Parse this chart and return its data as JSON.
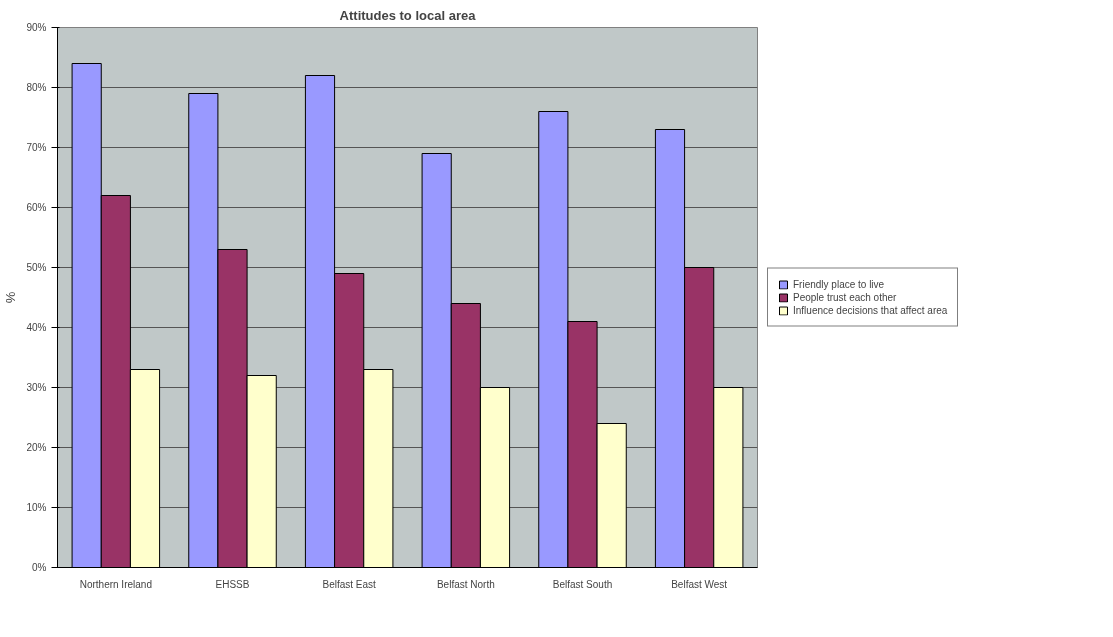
{
  "chart_data": {
    "type": "bar",
    "title": "Attitudes to local area",
    "ylabel": "%",
    "categories": [
      "Northern Ireland",
      "EHSSB",
      "Belfast East",
      "Belfast North",
      "Belfast South",
      "Belfast West"
    ],
    "series": [
      {
        "name": "Friendly place to live",
        "color": "#9999ff",
        "values": [
          84,
          79,
          82,
          69,
          76,
          73
        ]
      },
      {
        "name": "People trust each other",
        "color": "#993366",
        "values": [
          62,
          53,
          49,
          44,
          41,
          50
        ]
      },
      {
        "name": "Influence decisions that affect area",
        "color": "#ffffcc",
        "values": [
          33,
          32,
          33,
          30,
          24,
          30
        ]
      }
    ],
    "ylim": [
      0,
      90
    ],
    "yticks": [
      {
        "value": 0,
        "label": "0%"
      },
      {
        "value": 10,
        "label": "10%"
      },
      {
        "value": 20,
        "label": "20%"
      },
      {
        "value": 30,
        "label": "30%"
      },
      {
        "value": 40,
        "label": "40%"
      },
      {
        "value": 50,
        "label": "50%"
      },
      {
        "value": 60,
        "label": "60%"
      },
      {
        "value": 70,
        "label": "70%"
      },
      {
        "value": 80,
        "label": "80%"
      },
      {
        "value": 90,
        "label": "90%"
      }
    ],
    "grid": "y",
    "legend": "right"
  }
}
